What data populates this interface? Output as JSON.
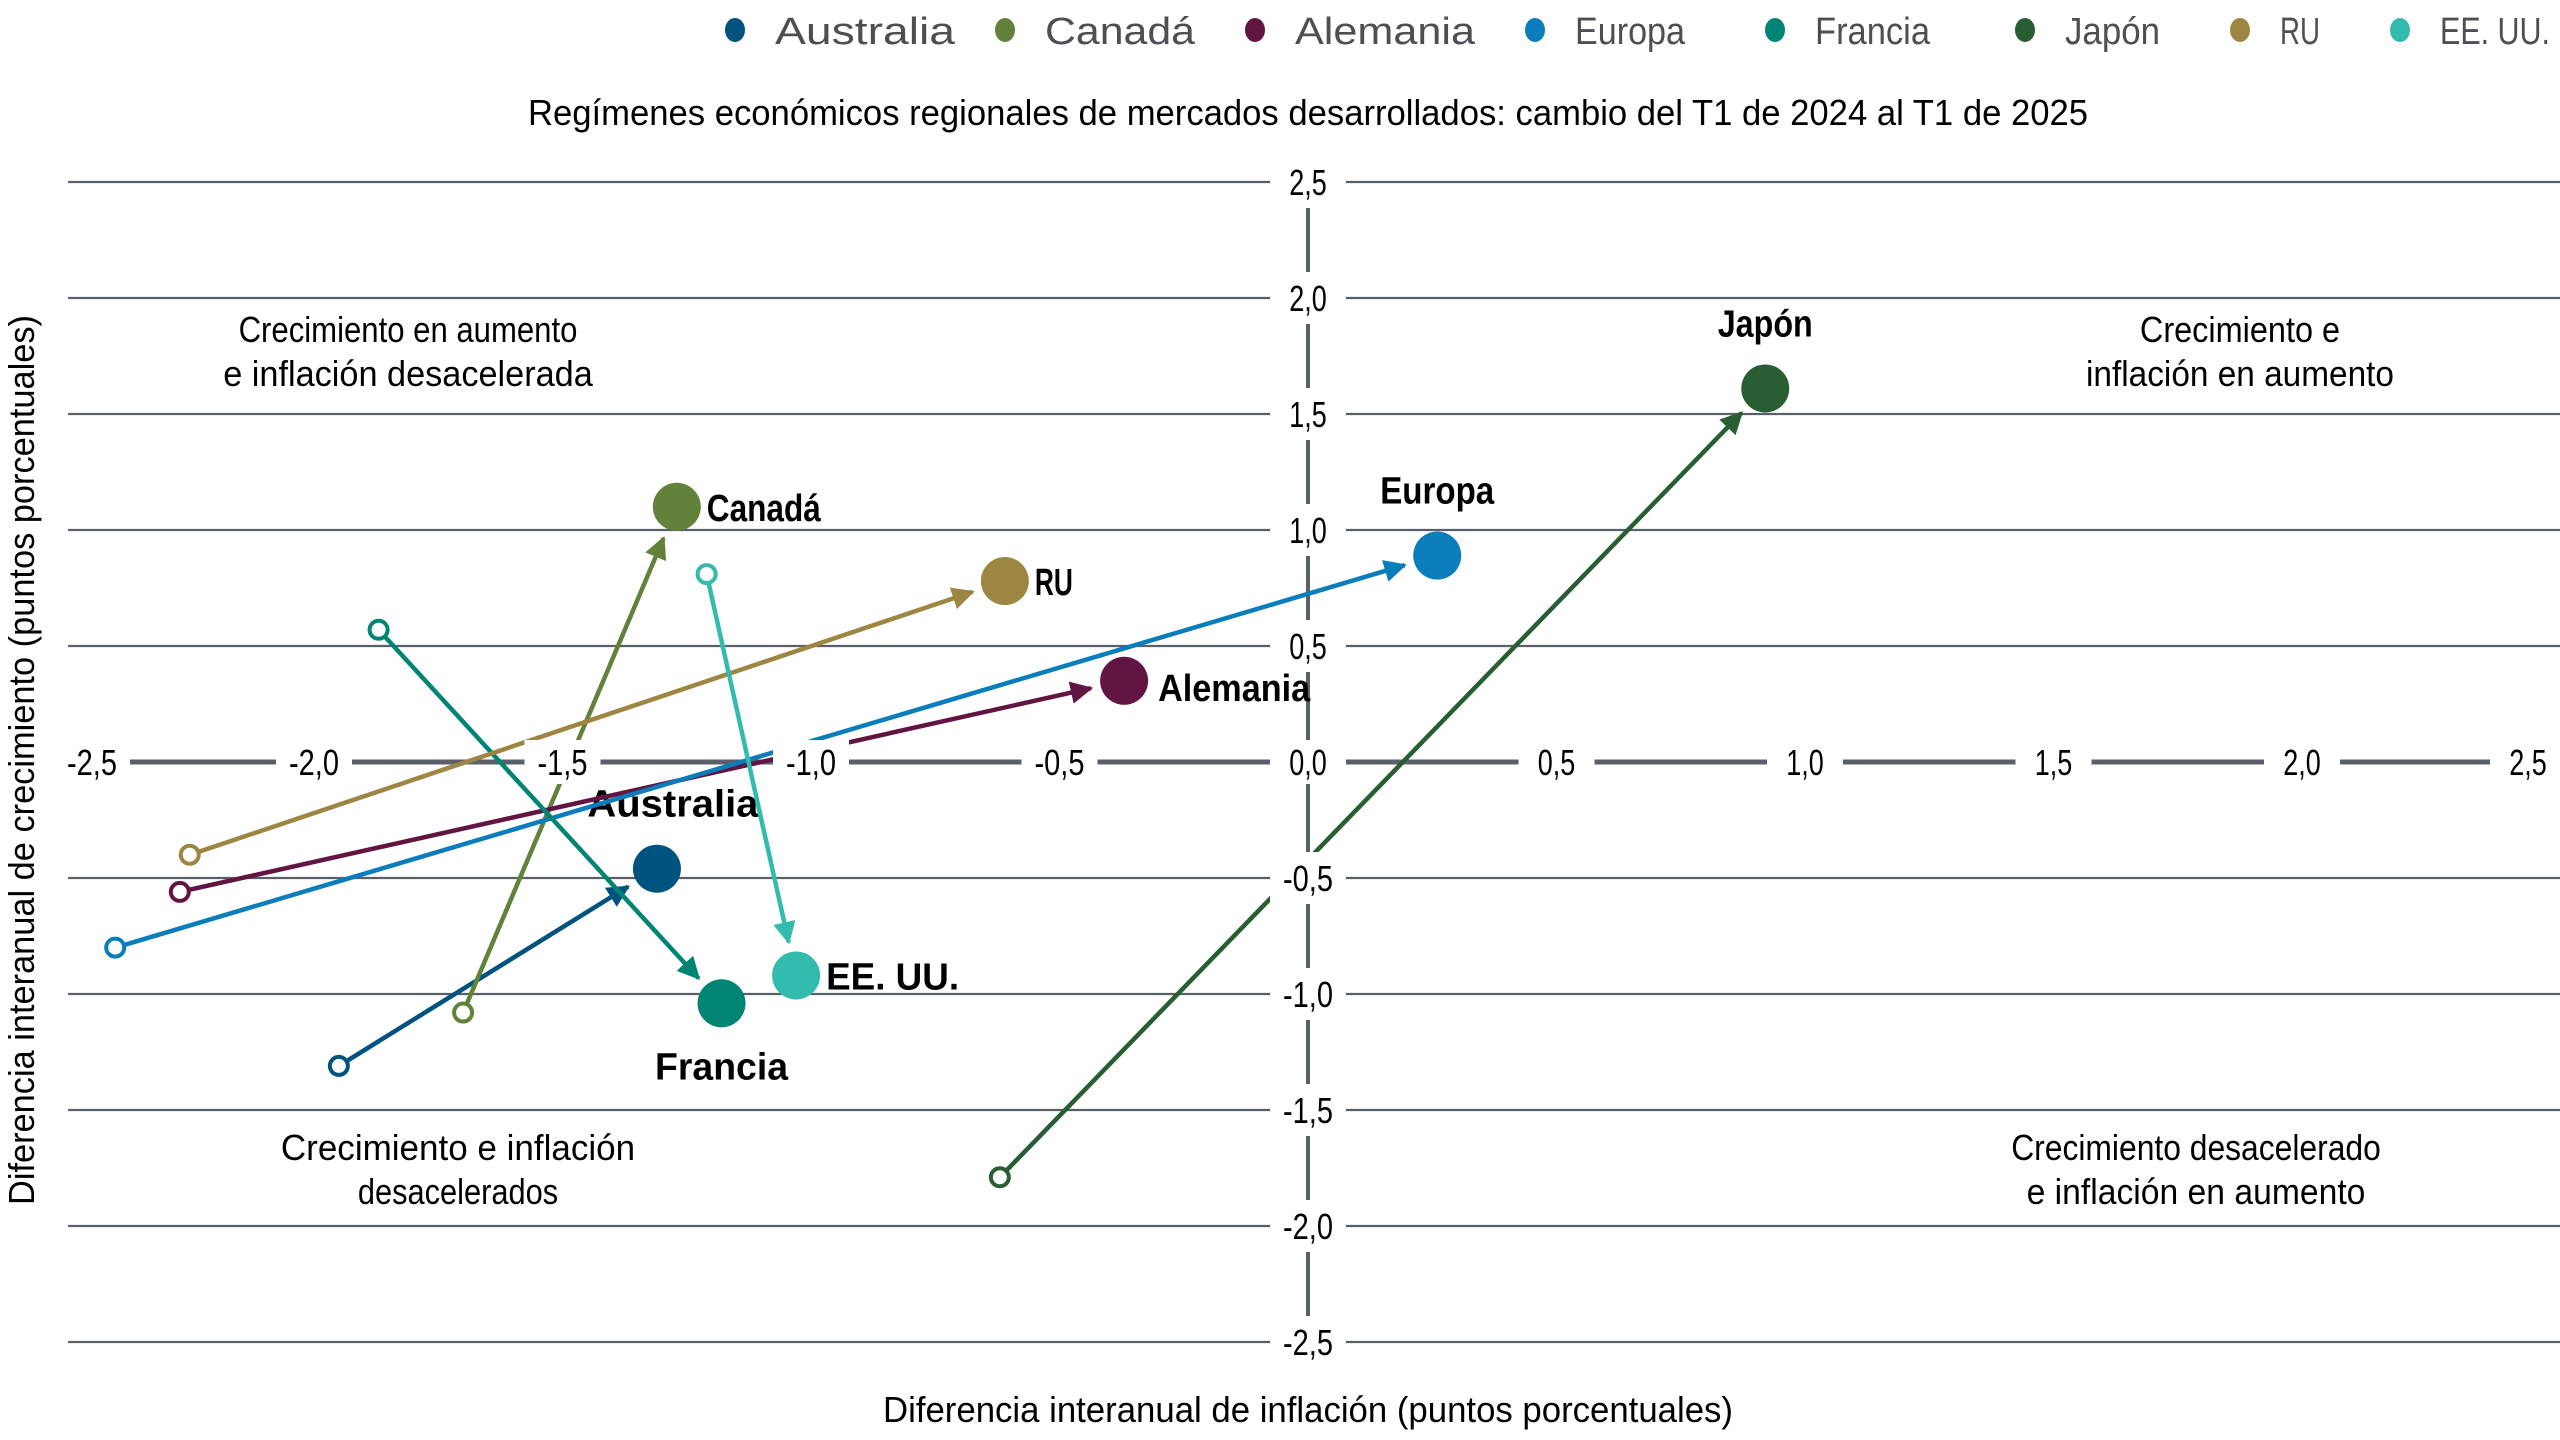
{
  "chart_data": {
    "type": "scatter",
    "title": "Regímenes económicos regionales de mercados desarrollados: cambio del T1 de 2024 al T1 de 2025",
    "xlabel": "Diferencia interanual de inflación (puntos porcentuales)",
    "ylabel": "Diferencia interanual de crecimiento (puntos porcentuales)",
    "xlim": [
      -2.5,
      2.5
    ],
    "ylim": [
      -2.5,
      2.5
    ],
    "x_ticks": [
      "-2,5",
      "-2,0",
      "-1,5",
      "-1,0",
      "-0,5",
      "0,0",
      "0,5",
      "1,0",
      "1,5",
      "2,0",
      "2,5"
    ],
    "x_tick_values": [
      -2.5,
      -2.0,
      -1.5,
      -1.0,
      -0.5,
      0.0,
      0.5,
      1.0,
      1.5,
      2.0,
      2.5
    ],
    "y_ticks": [
      "2,5",
      "2,0",
      "1,5",
      "1,0",
      "0,5",
      "0,0",
      "-0,5",
      "-1,0",
      "-1,5",
      "-2,0",
      "-2,5"
    ],
    "y_tick_values": [
      2.5,
      2.0,
      1.5,
      1.0,
      0.5,
      0.0,
      -0.5,
      -1.0,
      -1.5,
      -2.0,
      -2.5
    ],
    "grid": true,
    "legend_position": "top-right",
    "start_label": "T1 de 2024",
    "end_label": "T1 de 2025",
    "quadrants": [
      {
        "name": "top-left",
        "lines": [
          "Crecimiento en aumento",
          "e inflación desacelerada"
        ]
      },
      {
        "name": "top-right",
        "lines": [
          "Crecimiento e",
          "inflación en aumento"
        ]
      },
      {
        "name": "bottom-left",
        "lines": [
          "Crecimiento e inflación",
          "desacelerados"
        ]
      },
      {
        "name": "bottom-right",
        "lines": [
          "Crecimiento desacelerado",
          "e inflación en aumento"
        ]
      }
    ],
    "series": [
      {
        "name": "Australia",
        "color": "#00527f",
        "start": [
          -1.95,
          -1.31
        ],
        "end": [
          -1.31,
          -0.46
        ],
        "label_pos": "above"
      },
      {
        "name": "Canadá",
        "color": "#62823c",
        "start": [
          -1.7,
          -1.08
        ],
        "end": [
          -1.27,
          1.1
        ],
        "label_pos": "right"
      },
      {
        "name": "Alemania",
        "color": "#621442",
        "start": [
          -2.27,
          -0.56
        ],
        "end": [
          -0.37,
          0.35
        ],
        "label_pos": "right-below"
      },
      {
        "name": "Europa",
        "color": "#0a7dba",
        "start": [
          -2.4,
          -0.8
        ],
        "end": [
          0.26,
          0.89
        ],
        "label_pos": "above"
      },
      {
        "name": "Francia",
        "color": "#008575",
        "start": [
          -1.87,
          0.57
        ],
        "end": [
          -1.18,
          -1.04
        ],
        "label_pos": "below"
      },
      {
        "name": "Japón",
        "color": "#285e32",
        "start": [
          -0.62,
          -1.79
        ],
        "end": [
          0.92,
          1.61
        ],
        "label_pos": "above"
      },
      {
        "name": "RU",
        "color": "#9c8642",
        "start": [
          -2.25,
          -0.4
        ],
        "end": [
          -0.61,
          0.78
        ],
        "label_pos": "right"
      },
      {
        "name": "EE. UU.",
        "color": "#33bbad",
        "start": [
          -1.21,
          0.81
        ],
        "end": [
          -1.03,
          -0.92
        ],
        "label_pos": "right"
      }
    ]
  },
  "colors": {
    "grid": "#5b5f69",
    "text": "#000000",
    "legend_text": "#4d4f55"
  }
}
